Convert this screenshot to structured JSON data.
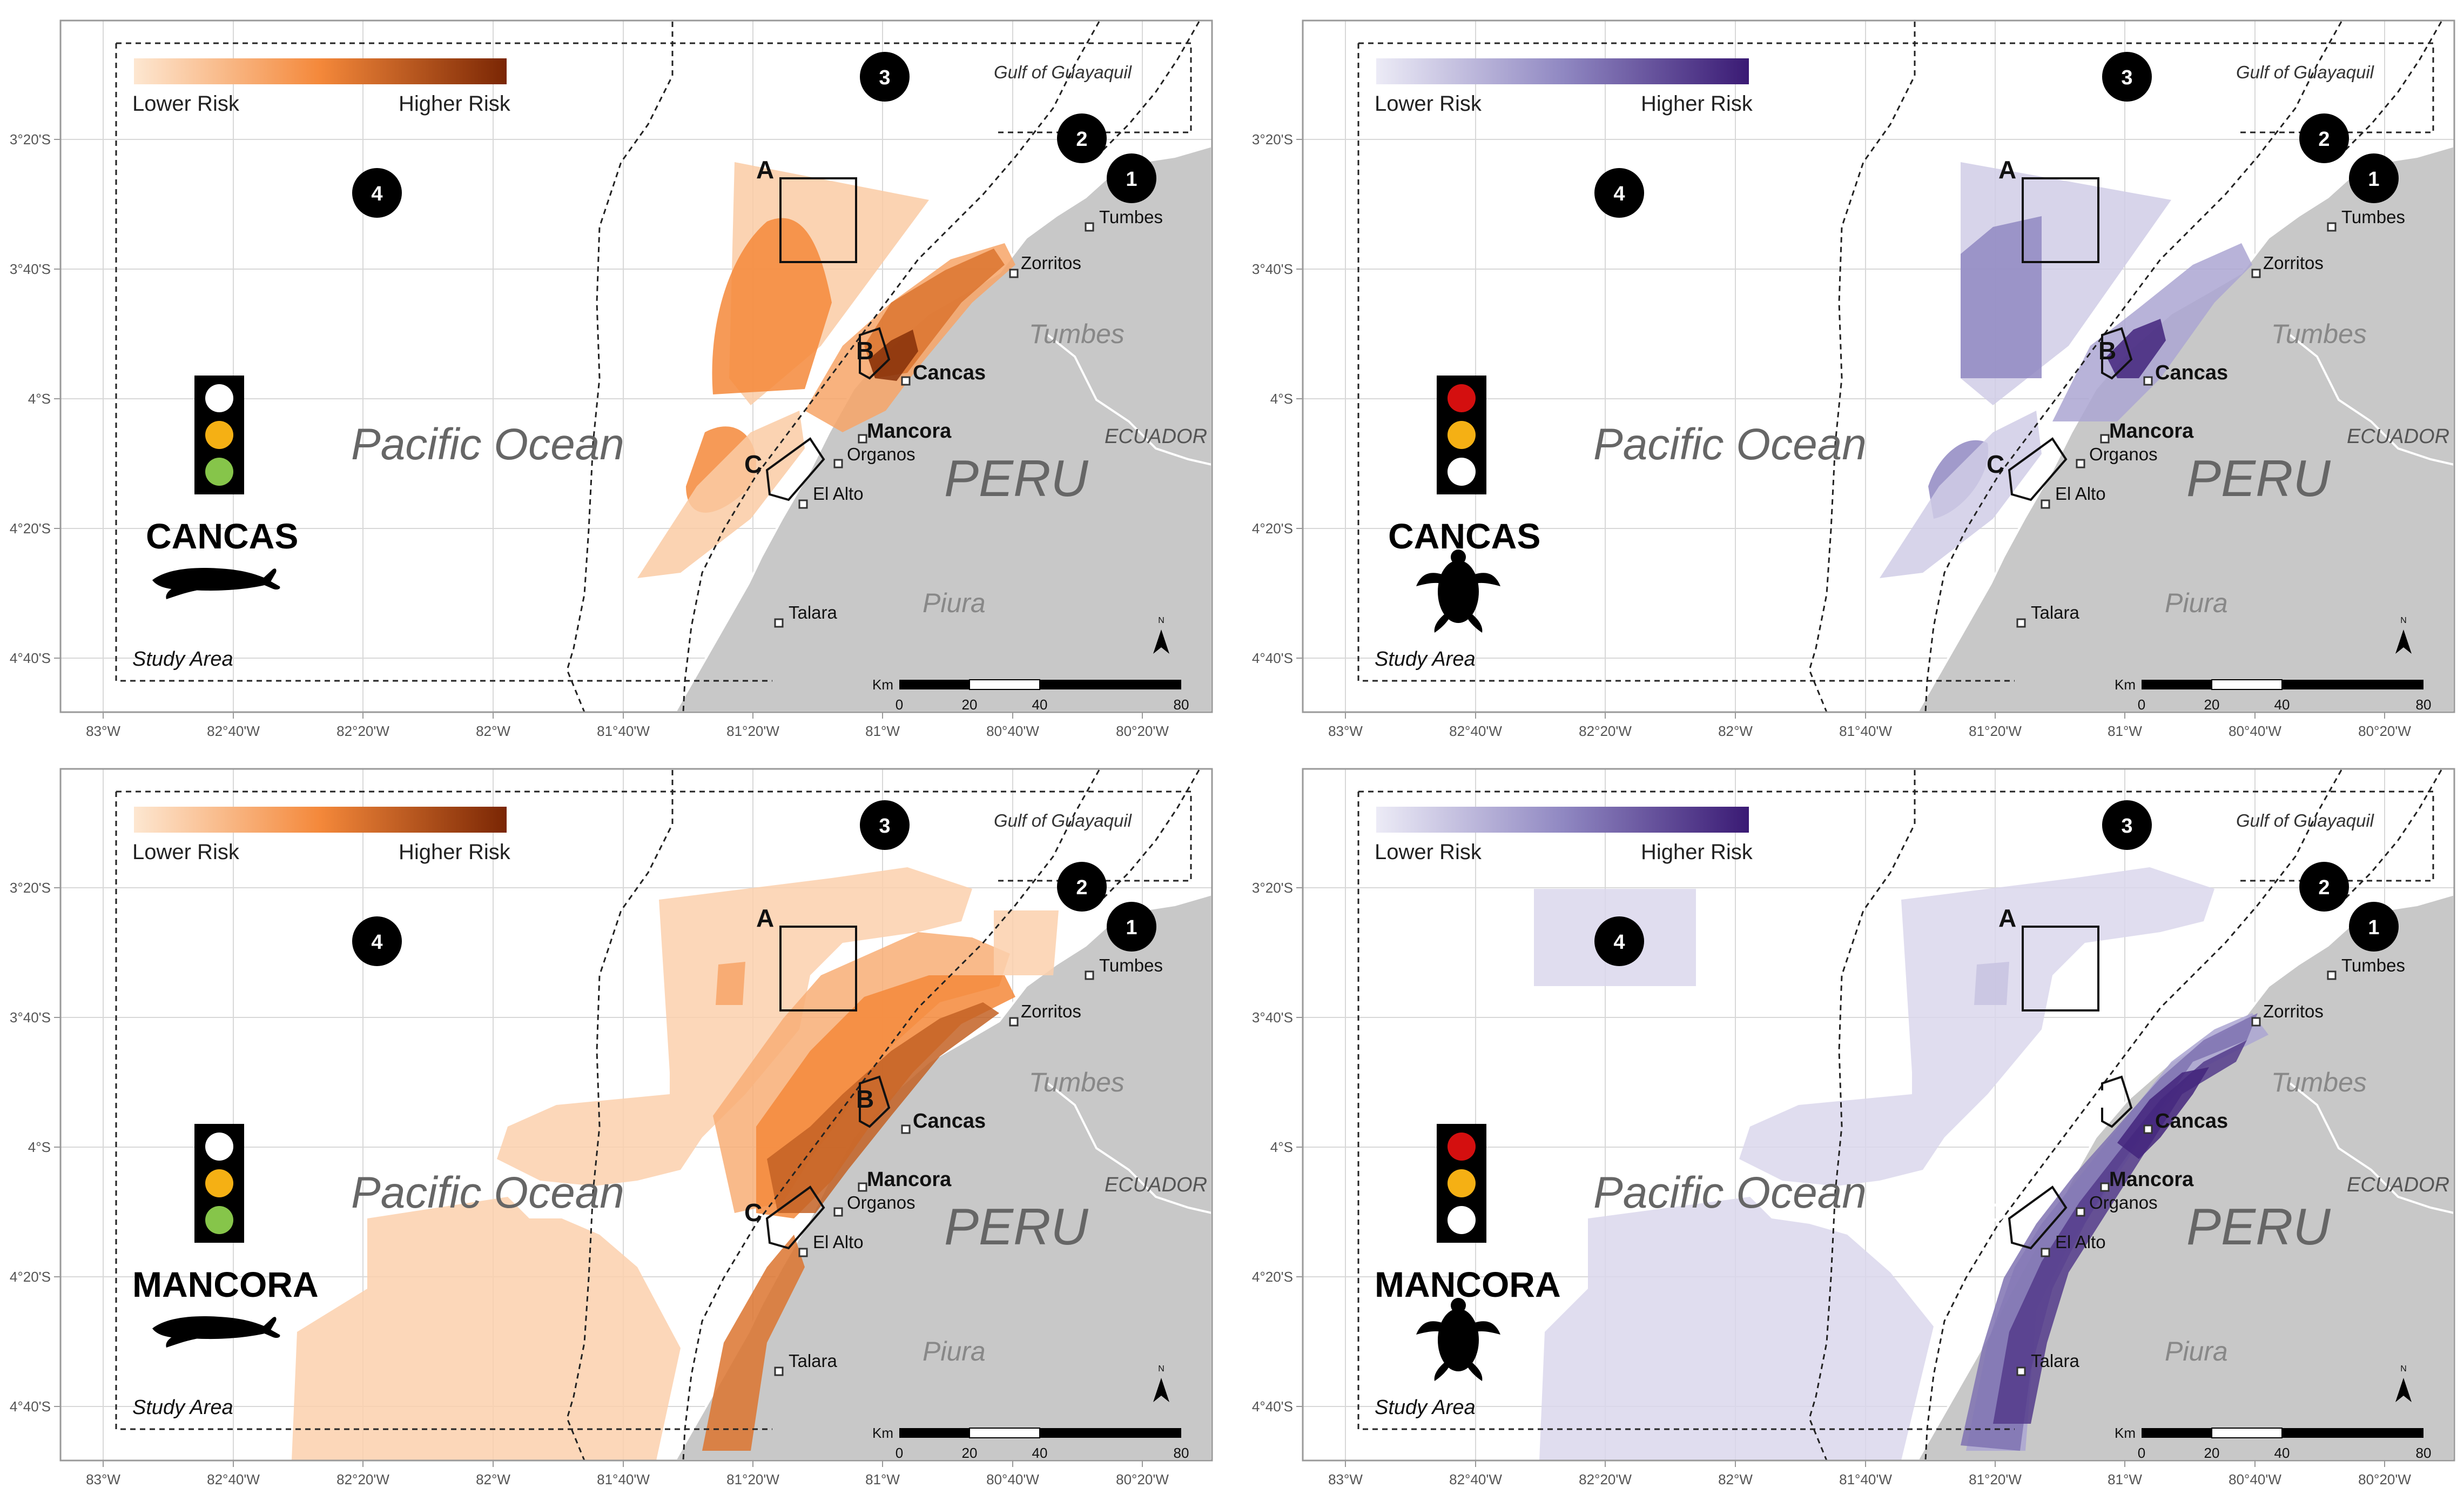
{
  "legend": {
    "low": "Lower Risk",
    "high": "Higher Risk"
  },
  "labels": {
    "pacific": "Pacific Ocean",
    "peru": "PERU",
    "ecuador": "ECUADOR",
    "tumbes_region": "Tumbes",
    "piura_region": "Piura",
    "gulf": "Gulf of Guayaquil",
    "study_area": "Study Area",
    "north": "N",
    "km": "Km"
  },
  "towns": [
    "Tumbes",
    "Zorritos",
    "Cancas",
    "Mancora",
    "Organos",
    "El Alto",
    "Talara"
  ],
  "boxes": [
    "A",
    "B",
    "C"
  ],
  "circles": [
    "1",
    "2",
    "3",
    "4"
  ],
  "scale_ticks": [
    "0",
    "20",
    "40",
    "80"
  ],
  "lat_ticks": [
    "3°20'S",
    "3°40'S",
    "4°S",
    "4°20'S",
    "4°40'S"
  ],
  "lon_ticks": [
    "83°W",
    "82°40'W",
    "82°20'W",
    "82°W",
    "81°40'W",
    "81°20'W",
    "81°W",
    "80°40'W",
    "80°20'W"
  ],
  "panels": [
    {
      "title": "CANCAS",
      "species": "whale",
      "risk_scheme": "orange",
      "traffic_light": [
        "white",
        "yellow",
        "green"
      ]
    },
    {
      "title": "CANCAS",
      "species": "turtle",
      "risk_scheme": "purple",
      "traffic_light": [
        "red",
        "yellow",
        "white"
      ]
    },
    {
      "title": "MANCORA",
      "species": "whale",
      "risk_scheme": "orange",
      "traffic_light": [
        "white",
        "yellow",
        "green"
      ]
    },
    {
      "title": "MANCORA",
      "species": "turtle",
      "risk_scheme": "purple",
      "traffic_light": [
        "red",
        "yellow",
        "white"
      ]
    }
  ],
  "colors": {
    "orange_low": "#fde7d1",
    "orange_mid": "#f4883a",
    "orange_high": "#7a2604",
    "purple_low": "#ecebf6",
    "purple_mid": "#9088c2",
    "purple_high": "#3a1a74",
    "land": "#c8c8c8",
    "light_red": "#d40f0f",
    "light_yellow": "#f5b014",
    "light_green": "#86c54a"
  }
}
